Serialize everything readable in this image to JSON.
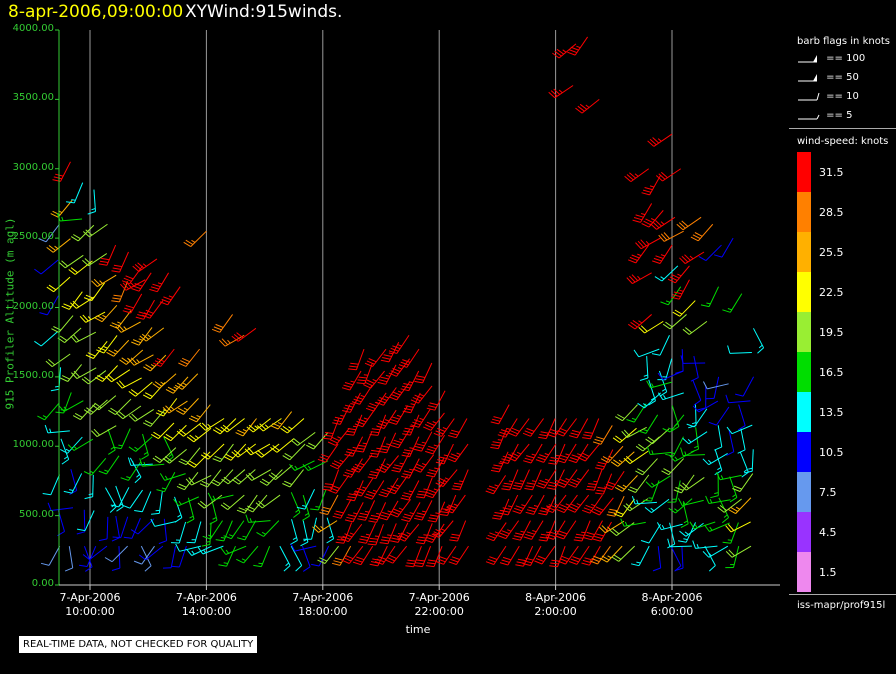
{
  "header": {
    "date": "8-apr-2006,09:00:00",
    "title": "XYWind:915winds."
  },
  "notice": "REAL-TIME DATA, NOT CHECKED FOR QUALITY",
  "legend": {
    "barb_title": "barb flags in knots",
    "barb_items": [
      {
        "label": "== 100",
        "knots": 100
      },
      {
        "label": "== 50",
        "knots": 50
      },
      {
        "label": "== 10",
        "knots": 10
      },
      {
        "label": "== 5",
        "knots": 5
      }
    ],
    "speed_title": "wind-speed: knots",
    "speed_bins": [
      {
        "label": "31.5",
        "color": "#ff0000"
      },
      {
        "label": "28.5",
        "color": "#ff8000"
      },
      {
        "label": "25.5",
        "color": "#ffb000"
      },
      {
        "label": "22.5",
        "color": "#ffff00"
      },
      {
        "label": "19.5",
        "color": "#99ee33"
      },
      {
        "label": "16.5",
        "color": "#00dd00"
      },
      {
        "label": "13.5",
        "color": "#00ffff"
      },
      {
        "label": "10.5",
        "color": "#0000ff"
      },
      {
        "label": "7.5",
        "color": "#6699ee"
      },
      {
        "label": "4.5",
        "color": "#9933ff"
      },
      {
        "label": "1.5",
        "color": "#ee88ee"
      }
    ],
    "footer": "iss-mapr/prof915l"
  },
  "chart_data": {
    "type": "scatter",
    "title": "XYWind:915winds.",
    "xlabel": "time",
    "ylabel": "915 Profiler Altitude (m agl)",
    "ylim": [
      0,
      4000
    ],
    "xlim_hours": [
      8.6,
      33.5
    ],
    "yticks": [
      "0.00",
      "500.00",
      "1000.00",
      "1500.00",
      "2000.00",
      "2500.00",
      "3000.00",
      "3500.00",
      "4000.00"
    ],
    "xticks": [
      {
        "date": "7-Apr-2006",
        "time": "10:00:00",
        "hour": 10
      },
      {
        "date": "7-Apr-2006",
        "time": "14:00:00",
        "hour": 14
      },
      {
        "date": "7-Apr-2006",
        "time": "18:00:00",
        "hour": 18
      },
      {
        "date": "7-Apr-2006",
        "time": "22:00:00",
        "hour": 22
      },
      {
        "date": "8-Apr-2006",
        "time": "2:00:00",
        "hour": 26
      },
      {
        "date": "8-Apr-2006",
        "time": "6:00:00",
        "hour": 30
      }
    ],
    "grid": "vertical",
    "series": [
      {
        "hour": 8.95,
        "top": 2600,
        "spd": [
          8,
          10,
          12,
          14,
          16,
          14,
          12,
          10,
          9,
          8
        ]
      },
      {
        "hour": 9.35,
        "top": 3050,
        "spd": [
          8,
          9,
          11,
          13,
          15,
          18,
          20,
          22,
          24,
          26,
          30
        ]
      },
      {
        "hour": 9.75,
        "top": 2900,
        "spd": [
          10,
          11,
          13,
          14,
          16,
          18,
          20,
          22,
          18,
          15,
          14
        ]
      },
      {
        "hour": 10.15,
        "top": 2850,
        "spd": [
          10,
          12,
          14,
          16,
          18,
          20,
          20,
          21,
          22,
          18,
          14
        ]
      },
      {
        "hour": 10.55,
        "top": 2600,
        "spd": [
          9,
          11,
          13,
          15,
          17,
          19,
          20,
          22,
          23,
          22,
          20,
          18
        ]
      },
      {
        "hour": 10.95,
        "top": 2450,
        "spd": [
          9,
          11,
          13,
          15,
          18,
          20,
          22,
          23,
          24,
          26,
          30
        ]
      },
      {
        "hour": 11.35,
        "top": 2400,
        "spd": [
          8,
          10,
          12,
          14,
          16,
          20,
          22,
          24,
          26,
          28,
          31
        ]
      },
      {
        "hour": 11.75,
        "top": 2300,
        "spd": [
          8,
          10,
          12,
          15,
          17,
          19,
          22,
          24,
          26,
          30,
          32
        ]
      },
      {
        "hour": 12.15,
        "top": 2250,
        "spd": [
          8,
          10,
          12,
          14,
          16,
          19,
          21,
          24,
          26,
          31,
          32
        ]
      },
      {
        "hour": 12.55,
        "top": 2050,
        "spd": [
          9,
          11,
          13,
          15,
          17,
          20,
          22,
          24,
          26,
          30
        ]
      },
      {
        "hour": 12.95,
        "top": 1700,
        "spd": [
          10,
          12,
          14,
          16,
          18,
          21,
          23,
          26,
          30
        ]
      },
      {
        "hour": 13.35,
        "top": 1500,
        "spd": [
          11,
          13,
          15,
          17,
          19,
          22,
          24,
          26
        ]
      },
      {
        "hour": 13.75,
        "top": 1700,
        "spd": [
          12,
          14,
          16,
          18,
          20,
          22,
          24,
          26,
          28
        ]
      },
      {
        "hour": 14.15,
        "top": 1300,
        "spd": [
          13,
          15,
          17,
          19,
          21,
          23,
          25
        ]
      },
      {
        "hour": 14.55,
        "top": 1200,
        "spd": [
          14,
          16,
          18,
          19,
          21,
          23
        ]
      },
      {
        "hour": 14.95,
        "top": 1200,
        "spd": [
          15,
          16,
          17,
          19,
          20,
          22
        ]
      },
      {
        "hour": 15.35,
        "top": 1200,
        "spd": [
          15,
          17,
          18,
          19,
          21,
          22
        ]
      },
      {
        "hour": 15.75,
        "top": 1200,
        "spd": [
          16,
          17,
          19,
          20,
          22,
          24
        ]
      },
      {
        "hour": 16.15,
        "top": 1200,
        "spd": [
          15,
          17,
          18,
          20,
          22,
          23
        ]
      },
      {
        "hour": 16.55,
        "top": 1200,
        "spd": [
          14,
          16,
          18,
          20,
          21,
          23
        ]
      },
      {
        "hour": 16.95,
        "top": 1250,
        "spd": [
          12,
          14,
          16,
          19,
          22,
          25
        ]
      },
      {
        "hour": 17.35,
        "top": 1200,
        "spd": [
          11,
          13,
          15,
          18,
          20,
          23
        ]
      },
      {
        "hour": 17.75,
        "top": 1100,
        "spd": [
          10,
          12,
          14,
          16,
          18
        ]
      },
      {
        "hour": 18.15,
        "top": 1100,
        "spd": [
          11,
          13,
          15,
          17,
          19
        ]
      },
      {
        "hour": 18.55,
        "top": 1200,
        "spd": [
          20,
          24,
          28,
          30,
          32,
          32
        ]
      },
      {
        "hour": 18.95,
        "top": 1300,
        "spd": [
          28,
          30,
          32,
          32,
          33,
          33,
          34
        ]
      },
      {
        "hour": 19.35,
        "top": 1700,
        "spd": [
          32,
          33,
          34,
          34,
          35,
          35,
          35,
          34,
          33,
          32
        ]
      },
      {
        "hour": 19.75,
        "top": 1600,
        "spd": [
          32,
          33,
          34,
          35,
          35,
          36,
          35,
          34,
          33
        ]
      },
      {
        "hour": 20.15,
        "top": 1700,
        "spd": [
          32,
          33,
          34,
          35,
          36,
          36,
          35,
          34,
          33,
          32
        ]
      },
      {
        "hour": 20.55,
        "top": 1750,
        "spd": [
          32,
          33,
          34,
          35,
          36,
          36,
          35,
          35,
          34,
          33
        ]
      },
      {
        "hour": 20.95,
        "top": 1800,
        "spd": [
          32,
          33,
          34,
          35,
          36,
          36,
          36,
          35,
          34,
          33
        ]
      },
      {
        "hour": 21.35,
        "top": 1700,
        "spd": [
          32,
          33,
          34,
          35,
          36,
          36,
          35,
          34,
          33,
          32
        ]
      },
      {
        "hour": 21.75,
        "top": 1600,
        "spd": [
          32,
          33,
          34,
          35,
          35,
          35,
          34,
          33,
          32
        ]
      },
      {
        "hour": 22.15,
        "top": 1400,
        "spd": [
          32,
          33,
          34,
          34,
          35,
          34,
          33,
          32
        ]
      },
      {
        "hour": 22.55,
        "top": 1200,
        "spd": [
          32,
          33,
          33,
          34,
          34,
          33
        ]
      },
      {
        "hour": 22.95,
        "top": 1200,
        "spd": [
          32,
          32,
          33,
          34,
          33,
          32
        ]
      },
      {
        "hour": 24.35,
        "top": 1300,
        "spd": [
          32,
          33,
          34,
          35,
          34,
          33,
          32
        ]
      },
      {
        "hour": 24.75,
        "top": 1200,
        "spd": [
          32,
          33,
          34,
          35,
          34,
          33
        ]
      },
      {
        "hour": 25.15,
        "top": 1200,
        "spd": [
          32,
          33,
          34,
          34,
          33,
          32
        ]
      },
      {
        "hour": 25.55,
        "top": 1200,
        "spd": [
          32,
          33,
          34,
          35,
          34,
          32
        ]
      },
      {
        "hour": 25.95,
        "top": 1200,
        "spd": [
          32,
          33,
          33,
          34,
          33,
          32
        ]
      },
      {
        "hour": 26.35,
        "top": 1200,
        "spd": [
          32,
          33,
          34,
          34,
          33,
          32
        ]
      },
      {
        "hour": 26.75,
        "top": 1200,
        "spd": [
          32,
          32,
          33,
          34,
          33,
          32
        ]
      },
      {
        "hour": 27.15,
        "top": 1200,
        "spd": [
          32,
          33,
          33,
          34,
          33,
          32
        ]
      },
      {
        "hour": 27.55,
        "top": 1200,
        "spd": [
          31,
          32,
          33,
          33,
          32,
          31
        ]
      },
      {
        "hour": 27.95,
        "top": 1150,
        "spd": [
          28,
          30,
          32,
          32,
          30,
          28
        ]
      },
      {
        "hour": 28.35,
        "top": 1000,
        "spd": [
          24,
          26,
          28,
          30,
          27
        ]
      },
      {
        "hour": 28.75,
        "top": 1300,
        "spd": [
          18,
          20,
          22,
          24,
          26,
          22,
          20
        ]
      },
      {
        "hour": 29.15,
        "top": 1650,
        "spd": [
          14,
          16,
          18,
          20,
          22,
          19,
          16,
          14,
          13
        ]
      },
      {
        "hour": 29.55,
        "top": 1700,
        "spd": [
          10,
          12,
          14,
          16,
          18,
          20,
          16,
          14,
          13,
          12
        ]
      },
      {
        "hour": 29.95,
        "top": 1800,
        "spd": [
          10,
          12,
          14,
          16,
          17,
          19,
          17,
          15,
          14,
          12
        ]
      },
      {
        "hour": 30.35,
        "top": 1700,
        "spd": [
          11,
          13,
          15,
          17,
          19,
          17,
          15,
          13,
          11,
          10
        ]
      },
      {
        "hour": 30.75,
        "top": 1650,
        "spd": [
          12,
          14,
          16,
          18,
          17,
          15,
          13,
          11,
          10
        ]
      },
      {
        "hour": 31.15,
        "top": 1600,
        "spd": [
          12,
          14,
          16,
          18,
          16,
          14,
          12,
          10,
          9
        ]
      },
      {
        "hour": 31.55,
        "top": 1500,
        "spd": [
          13,
          15,
          17,
          16,
          14,
          12,
          10,
          9
        ]
      },
      {
        "hour": 31.95,
        "top": 1450,
        "spd": [
          14,
          16,
          17,
          15,
          13,
          11,
          9,
          8
        ]
      },
      {
        "hour": 32.35,
        "top": 1300,
        "spd": [
          15,
          17,
          18,
          16,
          14,
          12,
          10
        ]
      },
      {
        "hour": 32.75,
        "top": 1850,
        "spd": [
          20,
          22,
          24,
          18,
          14,
          12,
          10,
          11,
          12,
          13
        ]
      }
    ],
    "upper_points": [
      {
        "hour": 11.9,
        "alt": 2200,
        "spd": 33
      },
      {
        "hour": 12.3,
        "alt": 2350,
        "spd": 33
      },
      {
        "hour": 12.7,
        "alt": 2250,
        "spd": 34
      },
      {
        "hour": 13.1,
        "alt": 2150,
        "spd": 33
      },
      {
        "hour": 14.0,
        "alt": 2550,
        "spd": 27
      },
      {
        "hour": 14.9,
        "alt": 1950,
        "spd": 29
      },
      {
        "hour": 15.3,
        "alt": 1800,
        "spd": 27
      },
      {
        "hour": 15.7,
        "alt": 1850,
        "spd": 30
      },
      {
        "hour": 26.7,
        "alt": 3900,
        "spd": 34
      },
      {
        "hour": 27.1,
        "alt": 3950,
        "spd": 35
      },
      {
        "hour": 26.6,
        "alt": 3600,
        "spd": 33
      },
      {
        "hour": 27.5,
        "alt": 3500,
        "spd": 33
      },
      {
        "hour": 29.2,
        "alt": 3000,
        "spd": 34
      },
      {
        "hour": 29.6,
        "alt": 2950,
        "spd": 34
      },
      {
        "hour": 30.0,
        "alt": 3250,
        "spd": 33
      },
      {
        "hour": 30.3,
        "alt": 3000,
        "spd": 31
      },
      {
        "hour": 29.3,
        "alt": 2750,
        "spd": 34
      },
      {
        "hour": 29.7,
        "alt": 2700,
        "spd": 35
      },
      {
        "hour": 30.1,
        "alt": 2650,
        "spd": 34
      },
      {
        "hour": 29.2,
        "alt": 2450,
        "spd": 34
      },
      {
        "hour": 29.6,
        "alt": 2500,
        "spd": 33
      },
      {
        "hour": 30.0,
        "alt": 2450,
        "spd": 33
      },
      {
        "hour": 30.4,
        "alt": 2550,
        "spd": 29
      },
      {
        "hour": 31.0,
        "alt": 2650,
        "spd": 29
      },
      {
        "hour": 31.4,
        "alt": 2600,
        "spd": 28
      },
      {
        "hour": 30.2,
        "alt": 2300,
        "spd": 13
      },
      {
        "hour": 30.6,
        "alt": 2300,
        "spd": 34
      },
      {
        "hour": 31.1,
        "alt": 2400,
        "spd": 34
      },
      {
        "hour": 31.7,
        "alt": 2450,
        "spd": 10
      },
      {
        "hour": 32.1,
        "alt": 2500,
        "spd": 11
      },
      {
        "hour": 29.3,
        "alt": 2250,
        "spd": 33
      },
      {
        "hour": 30.3,
        "alt": 2150,
        "spd": 16
      },
      {
        "hour": 30.8,
        "alt": 2050,
        "spd": 21
      },
      {
        "hour": 31.6,
        "alt": 2150,
        "spd": 16
      },
      {
        "hour": 32.4,
        "alt": 2100,
        "spd": 17
      },
      {
        "hour": 29.7,
        "alt": 1900,
        "spd": 21
      },
      {
        "hour": 30.5,
        "alt": 1950,
        "spd": 18
      },
      {
        "hour": 31.2,
        "alt": 1900,
        "spd": 20
      },
      {
        "hour": 29.3,
        "alt": 1950,
        "spd": 33
      },
      {
        "hour": 30.6,
        "alt": 2200,
        "spd": 33
      }
    ]
  }
}
